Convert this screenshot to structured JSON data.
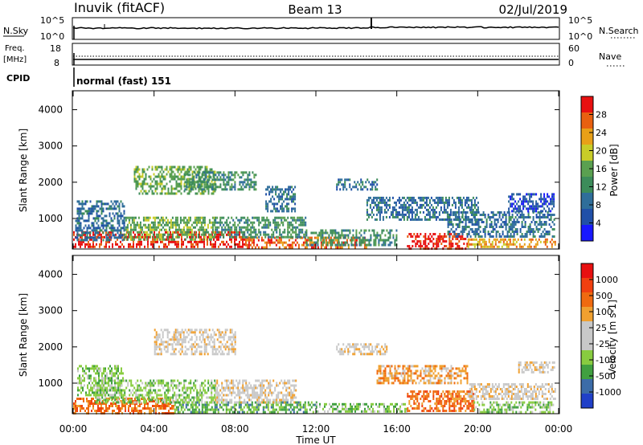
{
  "header": {
    "station": "Inuvik (fitACF)",
    "beam": "Beam 13",
    "date": "02/Jul/2019"
  },
  "noise_panel": {
    "left_label": "N.Sky",
    "left_ticks": [
      "10^5",
      "10^0"
    ],
    "right_label": "N.Search",
    "right_ticks": [
      "10^5",
      "10^0"
    ]
  },
  "freq_panel": {
    "left_label_1": "Freq.",
    "left_label_2": "[MHz]",
    "left_ticks": [
      "18",
      "8"
    ],
    "right_label": "Nave",
    "right_ticks": [
      "60",
      "0"
    ]
  },
  "cpid_panel": {
    "label": "CPID",
    "text": "normal (fast) 151"
  },
  "colors": {
    "power_scale": [
      "#1818ff",
      "#2050a8",
      "#2f6e9a",
      "#3c8c5a",
      "#5aa050",
      "#c8cc28",
      "#e8a018",
      "#e86010",
      "#e81010"
    ],
    "velocity_scale": [
      "#e81010",
      "#f04010",
      "#f06a10",
      "#f0a030",
      "#c8c8c8",
      "#c8c8c8",
      "#88cc40",
      "#40a040",
      "#3c6ca8",
      "#2040c8"
    ]
  },
  "chart_data": [
    {
      "type": "heatmap",
      "name": "power",
      "ylabel": "Slant Range [km]",
      "xlabel": "",
      "x_ticks": [
        "00:00",
        "04:00",
        "08:00",
        "12:00",
        "16:00",
        "20:00",
        "00:00"
      ],
      "x_range_hours": [
        0,
        24
      ],
      "y_ticks": [
        1000,
        2000,
        3000,
        4000
      ],
      "ylim": [
        180,
        4500
      ],
      "colorbar_label": "Power [dB]",
      "colorbar_ticks": [
        "4",
        "8",
        "12",
        "16",
        "20",
        "24",
        "28"
      ],
      "regions": [
        {
          "t0": 0.0,
          "t1": 8.5,
          "r0": 200,
          "r1": 650,
          "level": 8
        },
        {
          "t0": 8.5,
          "t1": 14.5,
          "r0": 200,
          "r1": 500,
          "level": 7
        },
        {
          "t0": 16.5,
          "t1": 19.5,
          "r0": 200,
          "r1": 600,
          "level": 8
        },
        {
          "t0": 19.5,
          "t1": 23.8,
          "r0": 200,
          "r1": 450,
          "level": 6
        },
        {
          "t0": 2.5,
          "t1": 7.0,
          "r0": 400,
          "r1": 1050,
          "level": 4
        },
        {
          "t0": 7.0,
          "t1": 11.5,
          "r0": 500,
          "r1": 1050,
          "level": 3
        },
        {
          "t0": 11.5,
          "t1": 16.0,
          "r0": 300,
          "r1": 700,
          "level": 3
        },
        {
          "t0": 0.1,
          "t1": 2.5,
          "r0": 400,
          "r1": 1500,
          "level": 2
        },
        {
          "t0": 3.0,
          "t1": 7.0,
          "r0": 1700,
          "r1": 2450,
          "level": 4
        },
        {
          "t0": 5.5,
          "t1": 9.0,
          "r0": 1800,
          "r1": 2300,
          "level": 3
        },
        {
          "t0": 9.5,
          "t1": 11.0,
          "r0": 1200,
          "r1": 1900,
          "level": 2
        },
        {
          "t0": 13.0,
          "t1": 15.0,
          "r0": 1800,
          "r1": 2100,
          "level": 2
        },
        {
          "t0": 14.5,
          "t1": 20.0,
          "r0": 1000,
          "r1": 1600,
          "level": 2
        },
        {
          "t0": 18.5,
          "t1": 23.8,
          "r0": 500,
          "r1": 1200,
          "level": 2
        },
        {
          "t0": 21.5,
          "t1": 23.8,
          "r0": 1200,
          "r1": 1700,
          "level": 1
        }
      ]
    },
    {
      "type": "heatmap",
      "name": "velocity",
      "ylabel": "Slant Range [km]",
      "xlabel": "Time UT",
      "x_ticks": [
        "00:00",
        "04:00",
        "08:00",
        "12:00",
        "16:00",
        "20:00",
        "00:00"
      ],
      "x_range_hours": [
        0,
        24
      ],
      "y_ticks": [
        1000,
        2000,
        3000,
        4000
      ],
      "ylim": [
        180,
        4500
      ],
      "colorbar_label": "Velocity [m s-1]",
      "colorbar_ticks": [
        "1000",
        "500",
        "100",
        "25",
        "-25",
        "-100",
        "-500",
        "-1000"
      ],
      "regions": [
        {
          "t0": 0.0,
          "t1": 5.0,
          "r0": 200,
          "r1": 600,
          "level": 2
        },
        {
          "t0": 5.0,
          "t1": 12.0,
          "r0": 200,
          "r1": 500,
          "level": 7
        },
        {
          "t0": 12.0,
          "t1": 16.5,
          "r0": 200,
          "r1": 450,
          "level": 6
        },
        {
          "t0": 16.5,
          "t1": 19.8,
          "r0": 250,
          "r1": 800,
          "level": 2
        },
        {
          "t0": 19.8,
          "t1": 23.8,
          "r0": 200,
          "r1": 500,
          "level": 6
        },
        {
          "t0": 7.0,
          "t1": 11.0,
          "r0": 500,
          "r1": 1100,
          "level": 4
        },
        {
          "t0": 1.0,
          "t1": 7.0,
          "r0": 500,
          "r1": 1100,
          "level": 6
        },
        {
          "t0": 4.0,
          "t1": 8.0,
          "r0": 1800,
          "r1": 2500,
          "level": 4
        },
        {
          "t0": 0.2,
          "t1": 2.5,
          "r0": 700,
          "r1": 1500,
          "level": 6
        },
        {
          "t0": 13.0,
          "t1": 15.5,
          "r0": 1800,
          "r1": 2100,
          "level": 4
        },
        {
          "t0": 15.0,
          "t1": 19.5,
          "r0": 1000,
          "r1": 1500,
          "level": 3
        },
        {
          "t0": 19.5,
          "t1": 23.8,
          "r0": 600,
          "r1": 1000,
          "level": 4
        },
        {
          "t0": 22.0,
          "t1": 23.8,
          "r0": 1300,
          "r1": 1600,
          "level": 4
        }
      ]
    }
  ]
}
